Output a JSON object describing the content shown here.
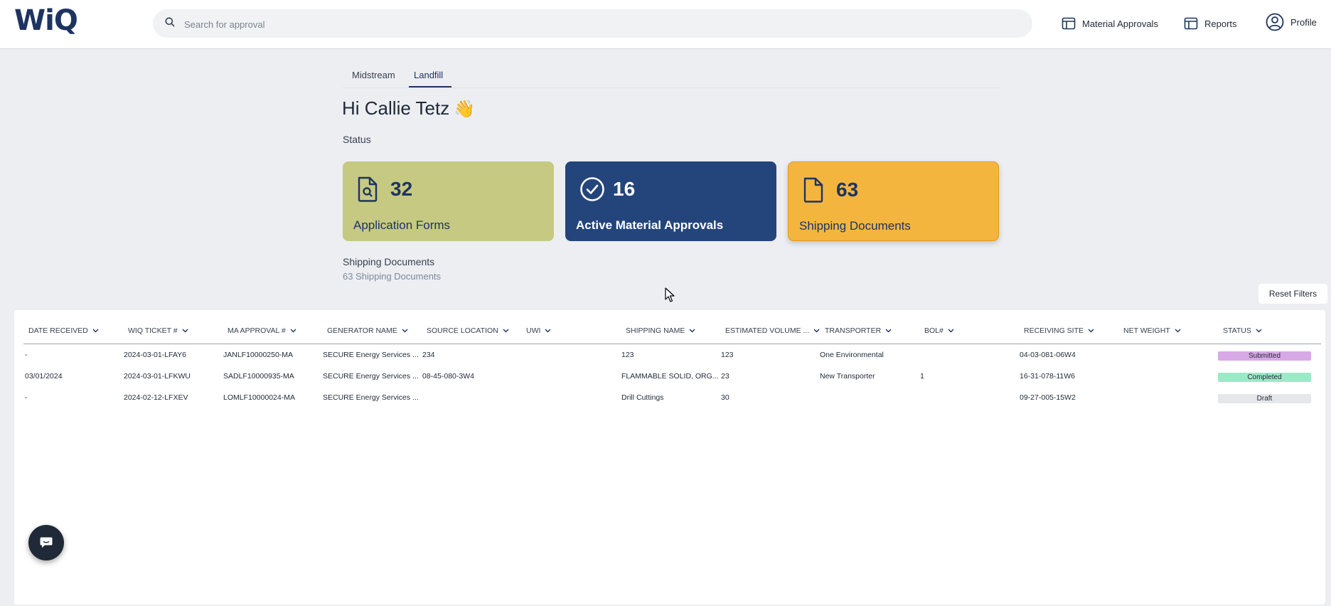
{
  "header": {
    "logo": "WiQ",
    "search_placeholder": "Search for approval",
    "nav": [
      {
        "label": "Material Approvals",
        "icon": "layout-icon"
      },
      {
        "label": "Reports",
        "icon": "layout-icon"
      },
      {
        "label": "Profile",
        "icon": "user-circle-icon"
      }
    ]
  },
  "tabs": [
    {
      "label": "Midstream",
      "active": false
    },
    {
      "label": "Landfill",
      "active": true
    }
  ],
  "greeting": "Hi Callie Tetz",
  "greeting_emoji": "👋",
  "status_label": "Status",
  "cards": [
    {
      "count": "32",
      "title": "Application Forms",
      "icon": "document-search-icon",
      "color": "#c6c981"
    },
    {
      "count": "16",
      "title": "Active Material Approvals",
      "icon": "check-circle-icon",
      "color": "#24457b"
    },
    {
      "count": "63",
      "title": "Shipping Documents",
      "icon": "document-icon",
      "color": "#f4b53f"
    }
  ],
  "section": {
    "title": "Shipping Documents",
    "subtitle": "63 Shipping Documents"
  },
  "reset_filters": "Reset Filters",
  "table": {
    "columns": [
      "DATE RECEIVED",
      "WIQ TICKET #",
      "MA APPROVAL #",
      "GENERATOR NAME",
      "SOURCE LOCATION",
      "UWI",
      "SHIPPING NAME",
      "ESTIMATED VOLUME ...",
      "TRANSPORTER",
      "BOL#",
      "RECEIVING SITE",
      "NET WEIGHT",
      "STATUS"
    ],
    "rows": [
      {
        "date": "-",
        "ticket": "2024-03-01-LFAY6",
        "approval": "JANLF10000250-MA",
        "generator": "SECURE Energy Services ...",
        "source": "234",
        "uwi": "",
        "shipping": "123",
        "volume": "123",
        "transporter": "One Environmental",
        "bol": "",
        "site": "04-03-081-06W4",
        "weight": "",
        "status": "Submitted",
        "status_color": "#d9a8e6"
      },
      {
        "date": "03/01/2024",
        "ticket": "2024-03-01-LFKWU",
        "approval": "SADLF10000935-MA",
        "generator": "SECURE Energy Services ...",
        "source": "08-45-080-3W4",
        "uwi": "",
        "shipping": "FLAMMABLE SOLID, ORG...",
        "volume": "23",
        "transporter": "New Transporter",
        "bol": "1",
        "site": "16-31-078-11W6",
        "weight": "",
        "status": "Completed",
        "status_color": "#9ce9c8"
      },
      {
        "date": "-",
        "ticket": "2024-02-12-LFXEV",
        "approval": "LOMLF10000024-MA",
        "generator": "SECURE Energy Services ...",
        "source": "",
        "uwi": "",
        "shipping": "Drill Cuttings",
        "volume": "30",
        "transporter": "",
        "bol": "",
        "site": "09-27-005-15W2",
        "weight": "",
        "status": "Draft",
        "status_color": "#e6e7ea"
      }
    ]
  }
}
